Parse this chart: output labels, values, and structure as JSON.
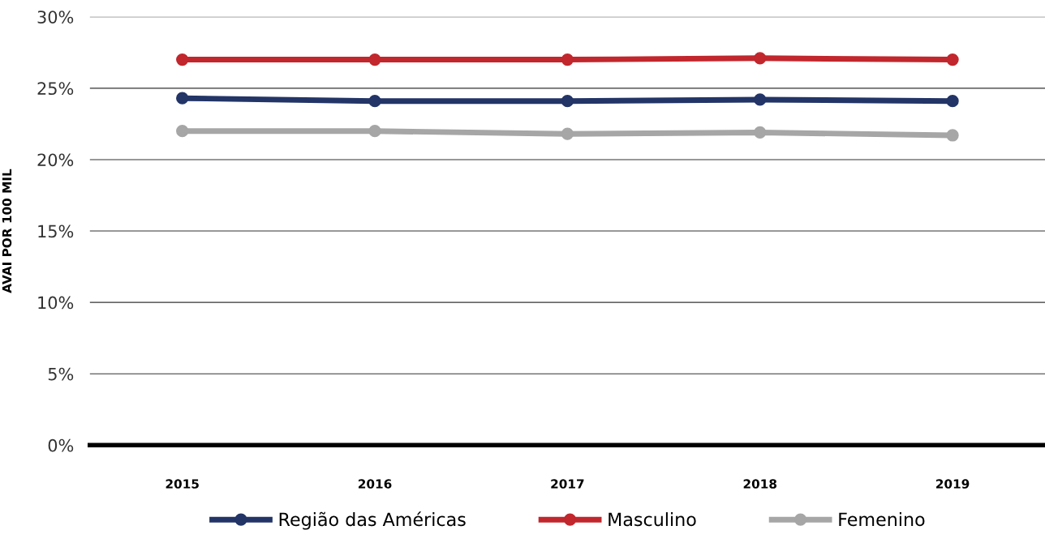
{
  "chart_data": {
    "type": "line",
    "ylabel": "AVAI POR 100 MIL",
    "categories": [
      "2015",
      "2016",
      "2017",
      "2018",
      "2019"
    ],
    "series": [
      {
        "name": "Região das Américas",
        "color": "#233567",
        "values": [
          24.3,
          24.1,
          24.1,
          24.2,
          24.1
        ]
      },
      {
        "name": "Masculino",
        "color": "#c1272d",
        "values": [
          27.0,
          27.0,
          27.0,
          27.1,
          27.0
        ]
      },
      {
        "name": "Femenino",
        "color": "#a6a6a6",
        "values": [
          22.0,
          22.0,
          21.8,
          21.9,
          21.7
        ]
      }
    ],
    "ylim": [
      0,
      30
    ],
    "yticks": [
      {
        "value": 0,
        "label": "0%"
      },
      {
        "value": 5,
        "label": "5%"
      },
      {
        "value": 10,
        "label": "10%"
      },
      {
        "value": 15,
        "label": "15%"
      },
      {
        "value": 20,
        "label": "20%"
      },
      {
        "value": 25,
        "label": "25%"
      },
      {
        "value": 30,
        "label": "30%"
      }
    ],
    "grid": "y",
    "legend": "bottom",
    "marker": "circle",
    "line_style": "solid"
  }
}
